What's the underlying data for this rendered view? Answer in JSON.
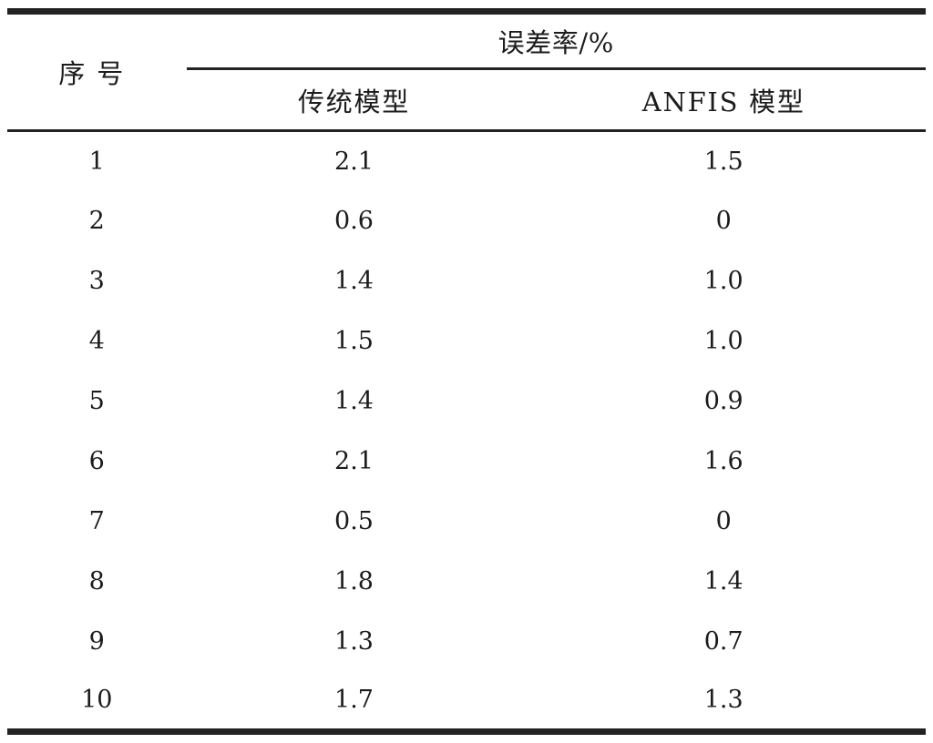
{
  "document": {
    "language": "zh-CN",
    "colors": {
      "rule": "#222222",
      "text": "#1c1c1c",
      "background": "#ffffff"
    },
    "table": {
      "corner_header": "序号",
      "group_header": "误差率/%",
      "sub_headers": {
        "traditional": "传统模型",
        "anfis": "ANFIS 模型"
      },
      "rows": [
        {
          "no": "1",
          "traditional": "2.1",
          "anfis": "1.5"
        },
        {
          "no": "2",
          "traditional": "0.6",
          "anfis": "0"
        },
        {
          "no": "3",
          "traditional": "1.4",
          "anfis": "1.0"
        },
        {
          "no": "4",
          "traditional": "1.5",
          "anfis": "1.0"
        },
        {
          "no": "5",
          "traditional": "1.4",
          "anfis": "0.9"
        },
        {
          "no": "6",
          "traditional": "2.1",
          "anfis": "1.6"
        },
        {
          "no": "7",
          "traditional": "0.5",
          "anfis": "0"
        },
        {
          "no": "8",
          "traditional": "1.8",
          "anfis": "1.4"
        },
        {
          "no": "9",
          "traditional": "1.3",
          "anfis": "0.7"
        },
        {
          "no": "10",
          "traditional": "1.7",
          "anfis": "1.3"
        }
      ]
    }
  },
  "chart_data": {
    "type": "table",
    "title": "误差率/%",
    "columns": [
      "序号",
      "传统模型",
      "ANFIS 模型"
    ],
    "categories": [
      "1",
      "2",
      "3",
      "4",
      "5",
      "6",
      "7",
      "8",
      "9",
      "10"
    ],
    "series": [
      {
        "name": "传统模型",
        "values": [
          2.1,
          0.6,
          1.4,
          1.5,
          1.4,
          2.1,
          0.5,
          1.8,
          1.3,
          1.7
        ]
      },
      {
        "name": "ANFIS 模型",
        "values": [
          1.5,
          0,
          1.0,
          1.0,
          0.9,
          1.6,
          0,
          1.4,
          0.7,
          1.3
        ]
      }
    ]
  }
}
